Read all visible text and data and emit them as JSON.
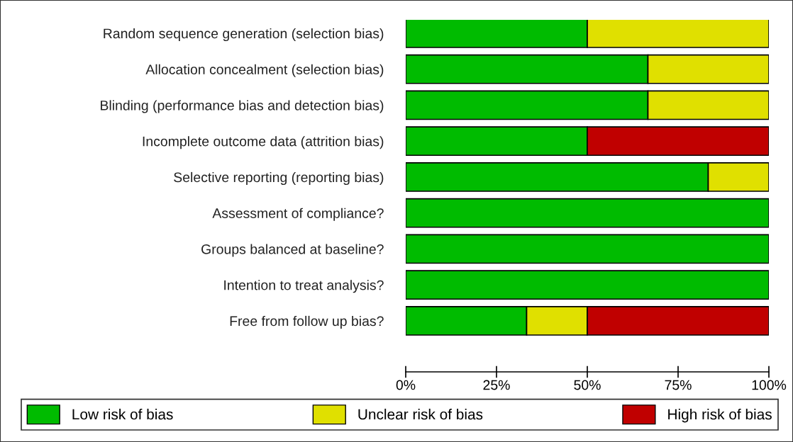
{
  "chart_data": {
    "type": "bar",
    "orientation": "horizontal",
    "stacked": true,
    "categories": [
      "Random sequence generation (selection bias)",
      "Allocation concealment (selection bias)",
      "Blinding (performance bias and detection bias)",
      "Incomplete outcome data (attrition bias)",
      "Selective reporting (reporting bias)",
      "Assessment of compliance?",
      "Groups balanced at baseline?",
      "Intention to treat analysis?",
      "Free from follow up bias?"
    ],
    "series": [
      {
        "name": "Low risk of bias",
        "color": "#00bb00",
        "values": [
          50,
          66.7,
          66.7,
          50,
          83.3,
          100,
          100,
          100,
          33.3
        ]
      },
      {
        "name": "Unclear risk of bias",
        "color": "#e0e000",
        "values": [
          50,
          33.3,
          33.3,
          0,
          16.7,
          0,
          0,
          0,
          16.7
        ]
      },
      {
        "name": "High risk of bias",
        "color": "#c00000",
        "values": [
          0,
          0,
          0,
          50,
          0,
          0,
          0,
          0,
          50
        ]
      }
    ],
    "xlim": [
      0,
      100
    ],
    "xticks": [
      {
        "value": 0,
        "label": "0%"
      },
      {
        "value": 25,
        "label": "25%"
      },
      {
        "value": 50,
        "label": "50%"
      },
      {
        "value": 75,
        "label": "75%"
      },
      {
        "value": 100,
        "label": "100%"
      }
    ],
    "legend": "bottom"
  }
}
